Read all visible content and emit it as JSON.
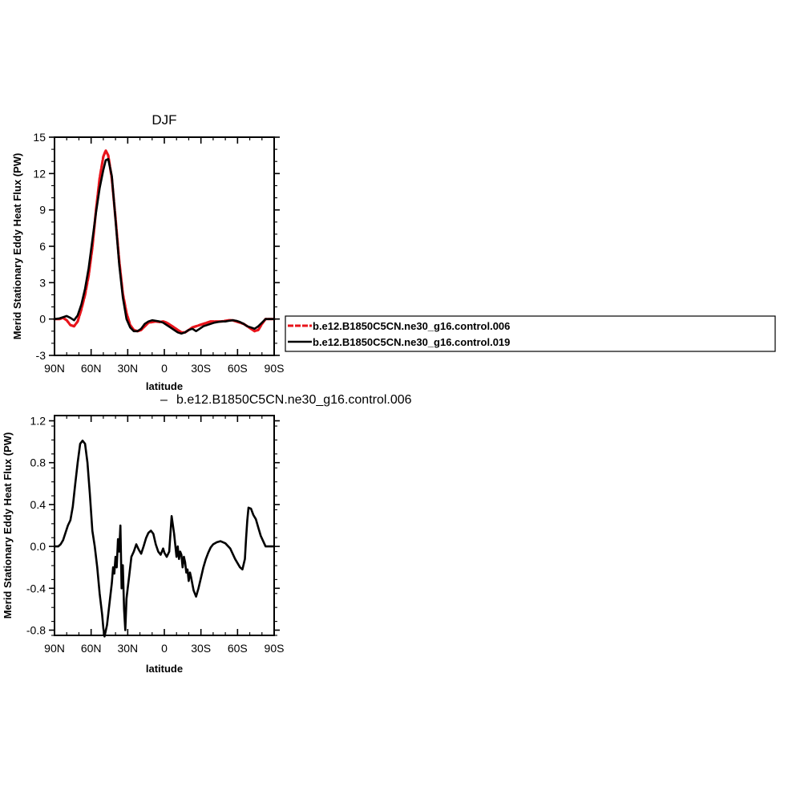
{
  "chart_data": [
    {
      "type": "line",
      "title": "DJF",
      "xlabel": "latitude",
      "ylabel": "Merid Stationary Eddy Heat Flux (PW)",
      "xlim": [
        90,
        -90
      ],
      "ylim": [
        -3,
        15
      ],
      "xticks": [
        90,
        60,
        30,
        0,
        -30,
        -60,
        -90
      ],
      "xtick_labels": [
        "90N",
        "60N",
        "30N",
        "0",
        "30S",
        "60S",
        "90S"
      ],
      "yticks": [
        -3,
        0,
        3,
        6,
        9,
        12,
        15
      ],
      "ytick_labels": [
        "-3",
        "0",
        "3",
        "6",
        "9",
        "12",
        "15"
      ],
      "legend_position": "right",
      "series": [
        {
          "name": "b.e12.B1850C5CN.ne30_g16.control.006",
          "color": "#e8141b",
          "style": "dashed",
          "x": [
            90,
            86,
            83,
            80,
            77,
            74,
            71,
            68,
            65,
            62,
            59,
            56,
            53,
            50,
            48,
            46,
            43,
            40,
            37,
            34,
            31,
            28,
            25,
            22,
            19,
            16,
            13,
            10,
            7,
            4,
            1,
            -2,
            -5,
            -8,
            -11,
            -14,
            -17,
            -20,
            -23,
            -26,
            -29,
            -32,
            -35,
            -38,
            -41,
            -44,
            -47,
            -50,
            -53,
            -56,
            -59,
            -62,
            -65,
            -68,
            -71,
            -74,
            -77,
            -80,
            -83,
            -86,
            -90
          ],
          "y": [
            0,
            0,
            0.1,
            -0.1,
            -0.5,
            -0.6,
            -0.2,
            0.8,
            2.0,
            3.6,
            5.9,
            9.0,
            11.6,
            13.4,
            13.9,
            13.5,
            11.6,
            8.3,
            4.8,
            2.1,
            0.5,
            -0.5,
            -0.9,
            -1.0,
            -0.9,
            -0.6,
            -0.3,
            -0.25,
            -0.2,
            -0.25,
            -0.2,
            -0.3,
            -0.5,
            -0.7,
            -0.9,
            -1.1,
            -1.1,
            -0.9,
            -0.7,
            -0.6,
            -0.5,
            -0.4,
            -0.3,
            -0.2,
            -0.2,
            -0.2,
            -0.2,
            -0.15,
            -0.1,
            -0.1,
            -0.2,
            -0.3,
            -0.4,
            -0.6,
            -0.8,
            -1.0,
            -0.9,
            -0.4,
            0,
            0,
            0
          ]
        },
        {
          "name": "b.e12.B1850C5CN.ne30_g16.control.019",
          "color": "#000000",
          "style": "solid",
          "x": [
            90,
            86,
            83,
            80,
            77,
            74,
            71,
            68,
            65,
            62,
            59,
            56,
            53,
            50,
            48,
            46,
            43,
            40,
            37,
            34,
            31,
            28,
            25,
            22,
            19,
            16,
            13,
            10,
            7,
            4,
            1,
            -2,
            -5,
            -8,
            -11,
            -14,
            -17,
            -20,
            -23,
            -26,
            -29,
            -32,
            -35,
            -38,
            -41,
            -44,
            -47,
            -50,
            -53,
            -56,
            -59,
            -62,
            -65,
            -68,
            -71,
            -74,
            -77,
            -80,
            -83,
            -86,
            -90
          ],
          "y": [
            0,
            0.05,
            0.15,
            0.25,
            0.1,
            -0.1,
            0.3,
            1.2,
            2.5,
            4.2,
            6.5,
            8.8,
            10.8,
            12.3,
            13.1,
            13.2,
            11.8,
            8.2,
            4.5,
            1.8,
            0.0,
            -0.7,
            -1.0,
            -1.0,
            -0.8,
            -0.4,
            -0.2,
            -0.1,
            -0.15,
            -0.2,
            -0.3,
            -0.5,
            -0.7,
            -0.9,
            -1.1,
            -1.2,
            -1.1,
            -0.9,
            -0.8,
            -1.0,
            -0.8,
            -0.6,
            -0.5,
            -0.4,
            -0.3,
            -0.25,
            -0.2,
            -0.2,
            -0.15,
            -0.1,
            -0.15,
            -0.25,
            -0.4,
            -0.6,
            -0.7,
            -0.8,
            -0.6,
            -0.3,
            0,
            0,
            0
          ]
        }
      ]
    },
    {
      "type": "line",
      "title": "b.e12.B1850C5CN.ne30_g16.control.006",
      "title_marker": "–",
      "xlabel": "latitude",
      "ylabel": "Merid Stationary Eddy Heat Flux (PW)",
      "xlim": [
        90,
        -90
      ],
      "ylim": [
        -0.85,
        1.25
      ],
      "xticks": [
        90,
        60,
        30,
        0,
        -30,
        -60,
        -90
      ],
      "xtick_labels": [
        "90N",
        "60N",
        "30N",
        "0",
        "30S",
        "60S",
        "90S"
      ],
      "yticks": [
        -0.8,
        -0.4,
        0.0,
        0.4,
        0.8,
        1.2
      ],
      "ytick_labels": [
        "-0.8",
        "-0.4",
        "0.0",
        "0.4",
        "0.8",
        "1.2"
      ],
      "series": [
        {
          "color": "#000000",
          "style": "solid",
          "x": [
            90,
            87,
            85,
            83,
            81,
            79,
            77,
            75,
            73,
            71,
            69,
            67,
            65,
            63,
            61,
            59,
            57,
            55,
            53,
            51,
            50,
            49,
            47,
            45,
            43,
            42,
            41,
            40,
            39,
            38,
            37,
            36,
            35,
            34,
            33,
            32,
            31,
            30,
            29,
            28,
            27,
            25,
            23,
            21,
            19,
            17,
            15,
            13,
            11,
            9,
            7,
            5,
            3,
            1,
            0,
            -2,
            -4,
            -6,
            -8,
            -10,
            -11,
            -12,
            -13,
            -14,
            -15,
            -16,
            -17,
            -18,
            -19,
            -20,
            -21,
            -22,
            -23,
            -24,
            -26,
            -28,
            -30,
            -32,
            -34,
            -36,
            -38,
            -40,
            -43,
            -46,
            -50,
            -54,
            -58,
            -62,
            -64,
            -66,
            -67,
            -68,
            -69,
            -71,
            -73,
            -75,
            -77,
            -79,
            -81,
            -83,
            -85,
            -87,
            -90
          ],
          "y": [
            0,
            0,
            0.02,
            0.06,
            0.13,
            0.2,
            0.25,
            0.38,
            0.6,
            0.8,
            0.98,
            1.01,
            0.98,
            0.8,
            0.5,
            0.15,
            0.0,
            -0.2,
            -0.45,
            -0.65,
            -0.78,
            -0.86,
            -0.75,
            -0.55,
            -0.35,
            -0.2,
            -0.26,
            -0.1,
            -0.2,
            0.07,
            -0.05,
            0.2,
            -0.4,
            -0.18,
            -0.6,
            -0.8,
            -0.5,
            -0.4,
            -0.3,
            -0.2,
            -0.1,
            -0.05,
            0.02,
            -0.03,
            -0.07,
            0.0,
            0.08,
            0.13,
            0.15,
            0.12,
            0.02,
            -0.05,
            -0.08,
            -0.02,
            -0.06,
            -0.1,
            -0.05,
            0.29,
            0.12,
            -0.1,
            0.0,
            -0.12,
            -0.05,
            -0.08,
            -0.2,
            -0.1,
            -0.15,
            -0.25,
            -0.22,
            -0.33,
            -0.25,
            -0.3,
            -0.36,
            -0.42,
            -0.48,
            -0.4,
            -0.3,
            -0.2,
            -0.12,
            -0.06,
            -0.01,
            0.02,
            0.04,
            0.05,
            0.03,
            -0.02,
            -0.12,
            -0.2,
            -0.22,
            -0.12,
            0.08,
            0.25,
            0.37,
            0.36,
            0.3,
            0.26,
            0.18,
            0.1,
            0.05,
            0.0,
            0.0,
            0.0,
            0.0
          ]
        }
      ]
    }
  ]
}
